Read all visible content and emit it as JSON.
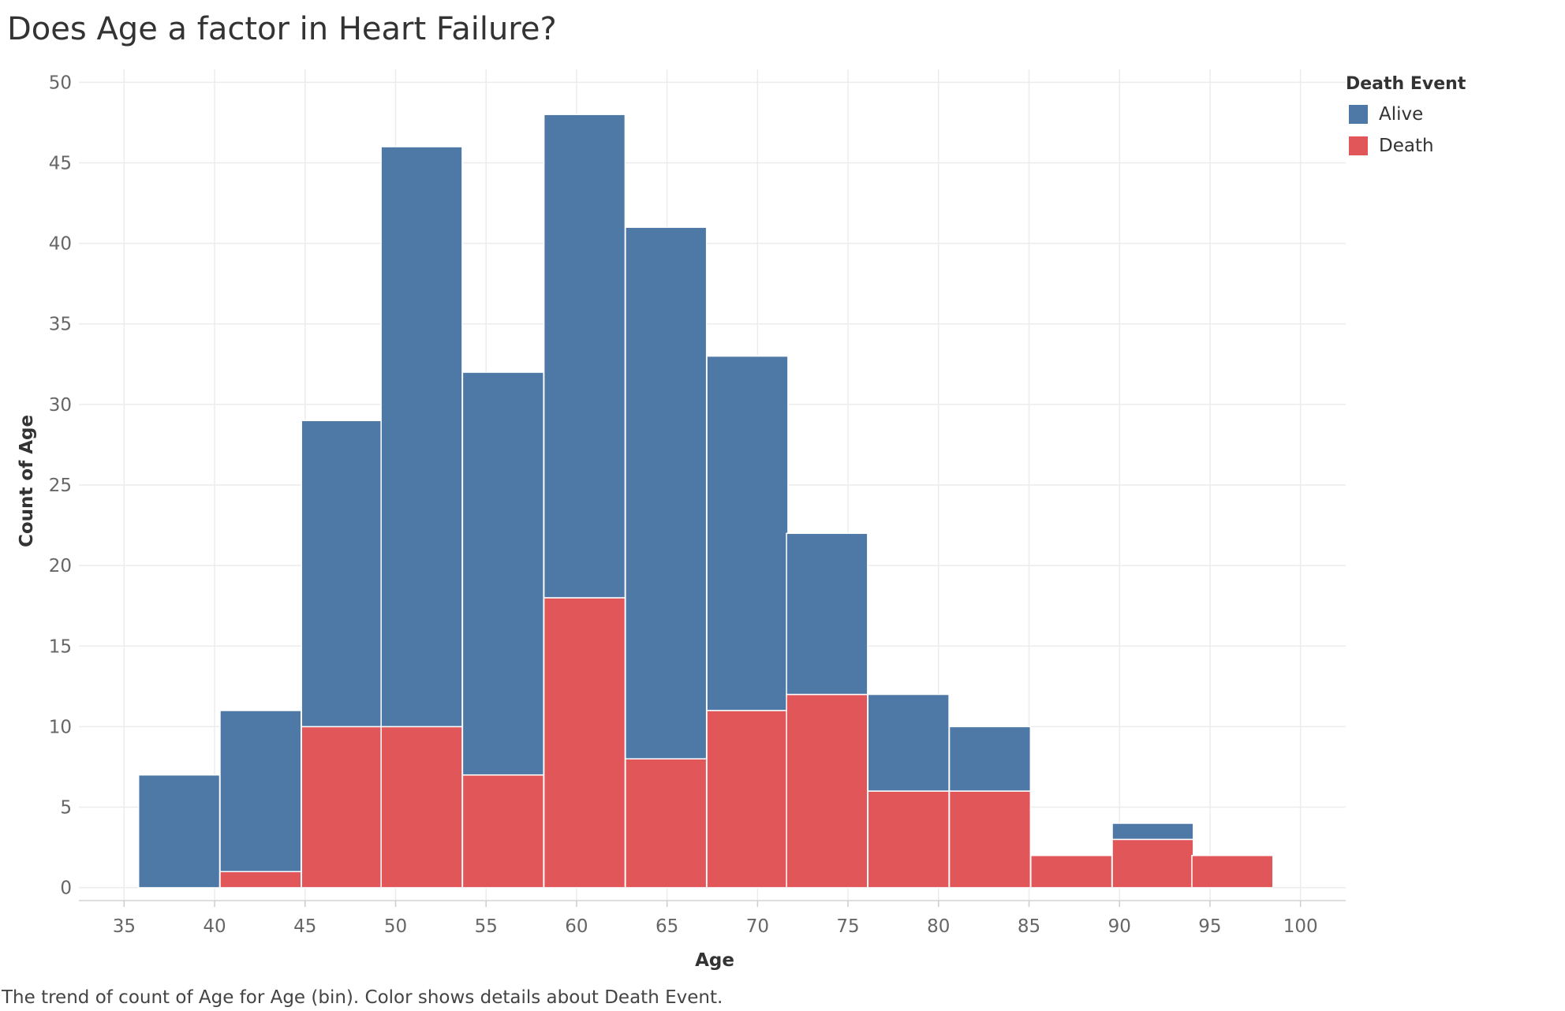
{
  "title": "Does Age a factor in Heart Failure?",
  "caption": "The trend of count of Age for Age (bin).  Color shows details about Death Event.",
  "legend": {
    "title": "Death Event",
    "items": [
      {
        "label": "Alive",
        "color": "#4e79a7"
      },
      {
        "label": "Death",
        "color": "#e15759"
      }
    ]
  },
  "chart_data": {
    "type": "bar",
    "stacked": true,
    "xlabel": "Age",
    "ylabel": "Count of Age",
    "xlim": [
      32.5,
      102.5
    ],
    "ylim": [
      -0.8,
      50.8
    ],
    "x_ticks": [
      35,
      40,
      45,
      50,
      55,
      60,
      65,
      70,
      75,
      80,
      85,
      90,
      95,
      100
    ],
    "y_ticks": [
      0,
      5,
      10,
      15,
      20,
      25,
      30,
      35,
      40,
      45,
      50
    ],
    "bin_width": 4.48,
    "bins": [
      {
        "start": 35.8,
        "death": 0,
        "alive": 7
      },
      {
        "start": 40.3,
        "death": 1,
        "alive": 10
      },
      {
        "start": 44.8,
        "death": 10,
        "alive": 19
      },
      {
        "start": 49.2,
        "death": 10,
        "alive": 36
      },
      {
        "start": 53.7,
        "death": 7,
        "alive": 25
      },
      {
        "start": 58.2,
        "death": 18,
        "alive": 30
      },
      {
        "start": 62.7,
        "death": 8,
        "alive": 33
      },
      {
        "start": 67.2,
        "death": 11,
        "alive": 22
      },
      {
        "start": 71.6,
        "death": 12,
        "alive": 10
      },
      {
        "start": 76.1,
        "death": 6,
        "alive": 6
      },
      {
        "start": 80.6,
        "death": 6,
        "alive": 4
      },
      {
        "start": 85.1,
        "death": 2,
        "alive": 0
      },
      {
        "start": 89.6,
        "death": 3,
        "alive": 1
      },
      {
        "start": 94.0,
        "death": 2,
        "alive": 0
      }
    ],
    "series": [
      {
        "name": "Alive",
        "color": "#4e79a7"
      },
      {
        "name": "Death",
        "color": "#e15759"
      }
    ],
    "grid": true,
    "legend_position": "right"
  }
}
